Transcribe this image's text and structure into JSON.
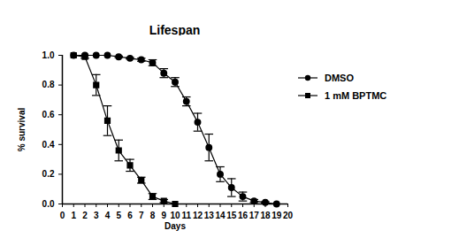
{
  "chart_data": {
    "type": "line",
    "title": "Lifespan",
    "x_label": "Days",
    "y_label": "% survival",
    "xlim": [
      0,
      20
    ],
    "xticks": [
      0,
      1,
      2,
      3,
      4,
      5,
      6,
      7,
      8,
      9,
      10,
      11,
      12,
      13,
      14,
      15,
      16,
      17,
      18,
      19,
      20
    ],
    "ylim": [
      0,
      1
    ],
    "yticks": [
      {
        "value": 0,
        "label": "0.0"
      },
      {
        "value": 0.2,
        "label": "0.2"
      },
      {
        "value": 0.4,
        "label": "0.4"
      },
      {
        "value": 0.6,
        "label": "0.6"
      },
      {
        "value": 0.8,
        "label": "0.8"
      },
      {
        "value": 1,
        "label": "1.0"
      }
    ],
    "legend": "right",
    "series": [
      {
        "name": "DMSO",
        "color": "#000000",
        "marker": "circle",
        "x": [
          1,
          2,
          3,
          4,
          5,
          6,
          7,
          8,
          9,
          10,
          11,
          12,
          13,
          14,
          15,
          16,
          17,
          18,
          19
        ],
        "values": [
          1.0,
          1.0,
          1.0,
          1.0,
          0.99,
          0.98,
          0.97,
          0.95,
          0.88,
          0.82,
          0.69,
          0.55,
          0.38,
          0.2,
          0.11,
          0.05,
          0.02,
          0.01,
          0.0
        ],
        "errors": [
          0,
          0,
          0,
          0,
          0.005,
          0.005,
          0.01,
          0.02,
          0.03,
          0.03,
          0.03,
          0.06,
          0.09,
          0.05,
          0.06,
          0.03,
          0.01,
          0.005,
          0
        ]
      },
      {
        "name": "1 mM BPTMC",
        "color": "#000000",
        "marker": "square",
        "x": [
          1,
          2,
          3,
          4,
          5,
          6,
          7,
          8,
          9,
          10
        ],
        "values": [
          1.0,
          0.99,
          0.8,
          0.56,
          0.36,
          0.26,
          0.16,
          0.05,
          0.02,
          0.0
        ],
        "errors": [
          0,
          0.01,
          0.07,
          0.1,
          0.07,
          0.04,
          0.02,
          0.02,
          0.01,
          0
        ]
      }
    ]
  }
}
